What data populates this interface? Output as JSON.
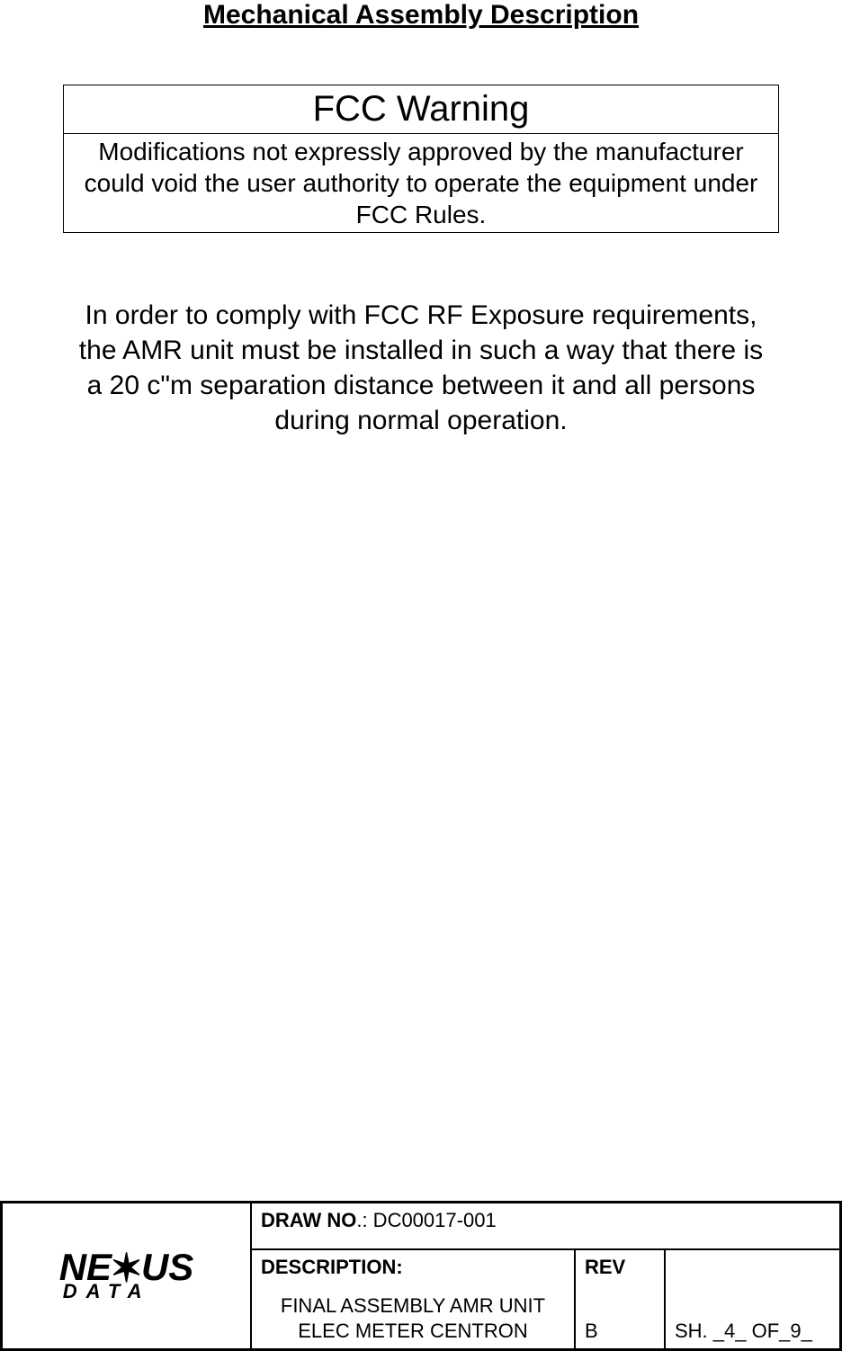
{
  "title": "Mechanical Assembly Description",
  "warning": {
    "header": "FCC Warning",
    "body": "Modifications not expressly approved by the manufacturer could void the user authority to operate the equipment under FCC Rules."
  },
  "compliance_text": "In order to comply with FCC RF Exposure requirements, the AMR unit must be installed in such a way that there is a 20 c\"m separation distance between it and all persons during normal operation.",
  "footer": {
    "logo": {
      "top_left": "NE",
      "top_right": "US",
      "bottom": "DATA"
    },
    "draw_label": "DRAW   NO",
    "draw_sep": ".:",
    "draw_value": " DC00017-001",
    "description_label": "DESCRIPTION:",
    "description_line1": "FINAL ASSEMBLY AMR UNIT",
    "description_line2": "ELEC METER CENTRON",
    "rev_label": "REV",
    "rev_value": "B",
    "sheet_text": "SH. _4_ OF_9_"
  },
  "colors": {
    "text": "#000000",
    "background": "#ffffff",
    "border": "#000000"
  }
}
